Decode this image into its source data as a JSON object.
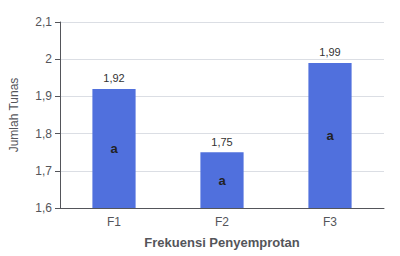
{
  "chart_data": {
    "type": "bar",
    "xlabel": "Frekuensi Penyemprotan",
    "ylabel": "Jumlah Tunas",
    "categories": [
      "F1",
      "F2",
      "F3"
    ],
    "values": [
      1.92,
      1.75,
      1.99
    ],
    "value_labels": [
      "1,92",
      "1,75",
      "1,99"
    ],
    "bar_labels": [
      "a",
      "a",
      "a"
    ],
    "data_labels": true,
    "ylim": [
      1.6,
      2.1
    ],
    "yticks": [
      {
        "value": 1.6,
        "label": "1,6"
      },
      {
        "value": 1.7,
        "label": "1,7"
      },
      {
        "value": 1.8,
        "label": "1,8"
      },
      {
        "value": 1.9,
        "label": "1,9"
      },
      2,
      {
        "value": 2.1,
        "label": "2,1"
      }
    ],
    "grid": true
  }
}
